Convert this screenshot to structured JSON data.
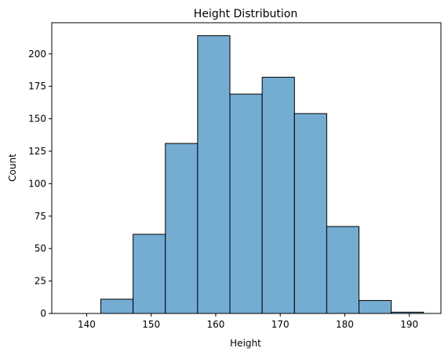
{
  "chart_data": {
    "type": "bar",
    "title": "Height Distribution",
    "xlabel": "Height",
    "ylabel": "Count",
    "xlim": [
      134.6,
      194.9
    ],
    "ylim": [
      0,
      224
    ],
    "grid": false,
    "legend": "none",
    "bar_color": "#75acd2",
    "edge_color": "#000000",
    "bins": [
      {
        "start": 137.2,
        "end": 142.2,
        "value": 0
      },
      {
        "start": 142.2,
        "end": 147.2,
        "value": 11
      },
      {
        "start": 147.2,
        "end": 152.2,
        "value": 61
      },
      {
        "start": 152.2,
        "end": 157.2,
        "value": 131
      },
      {
        "start": 157.2,
        "end": 162.2,
        "value": 214
      },
      {
        "start": 162.2,
        "end": 167.2,
        "value": 169
      },
      {
        "start": 167.2,
        "end": 172.2,
        "value": 182
      },
      {
        "start": 172.2,
        "end": 177.2,
        "value": 154
      },
      {
        "start": 177.2,
        "end": 182.2,
        "value": 67
      },
      {
        "start": 182.2,
        "end": 187.2,
        "value": 10
      },
      {
        "start": 187.2,
        "end": 192.2,
        "value": 1
      }
    ],
    "x_ticks": [
      140,
      150,
      160,
      170,
      180,
      190
    ],
    "y_ticks": [
      0,
      25,
      50,
      75,
      100,
      125,
      150,
      175,
      200
    ]
  }
}
